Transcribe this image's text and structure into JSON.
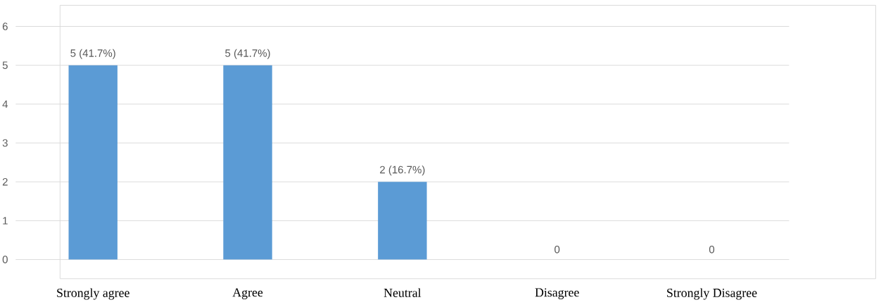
{
  "chart_data": {
    "type": "bar",
    "categories": [
      "Strongly agree",
      "Agree",
      "Neutral",
      "Disagree",
      "Strongly Disagree"
    ],
    "values": [
      5,
      5,
      2,
      0,
      0
    ],
    "value_labels": [
      "5 (41.7%)",
      "5 (41.7%)",
      "2 (16.7%)",
      "0",
      "0"
    ],
    "color": "#5b9bd5",
    "ylim": [
      0,
      6
    ],
    "yticks": [
      0,
      1,
      2,
      3,
      4,
      5,
      6
    ],
    "grid": "y"
  }
}
